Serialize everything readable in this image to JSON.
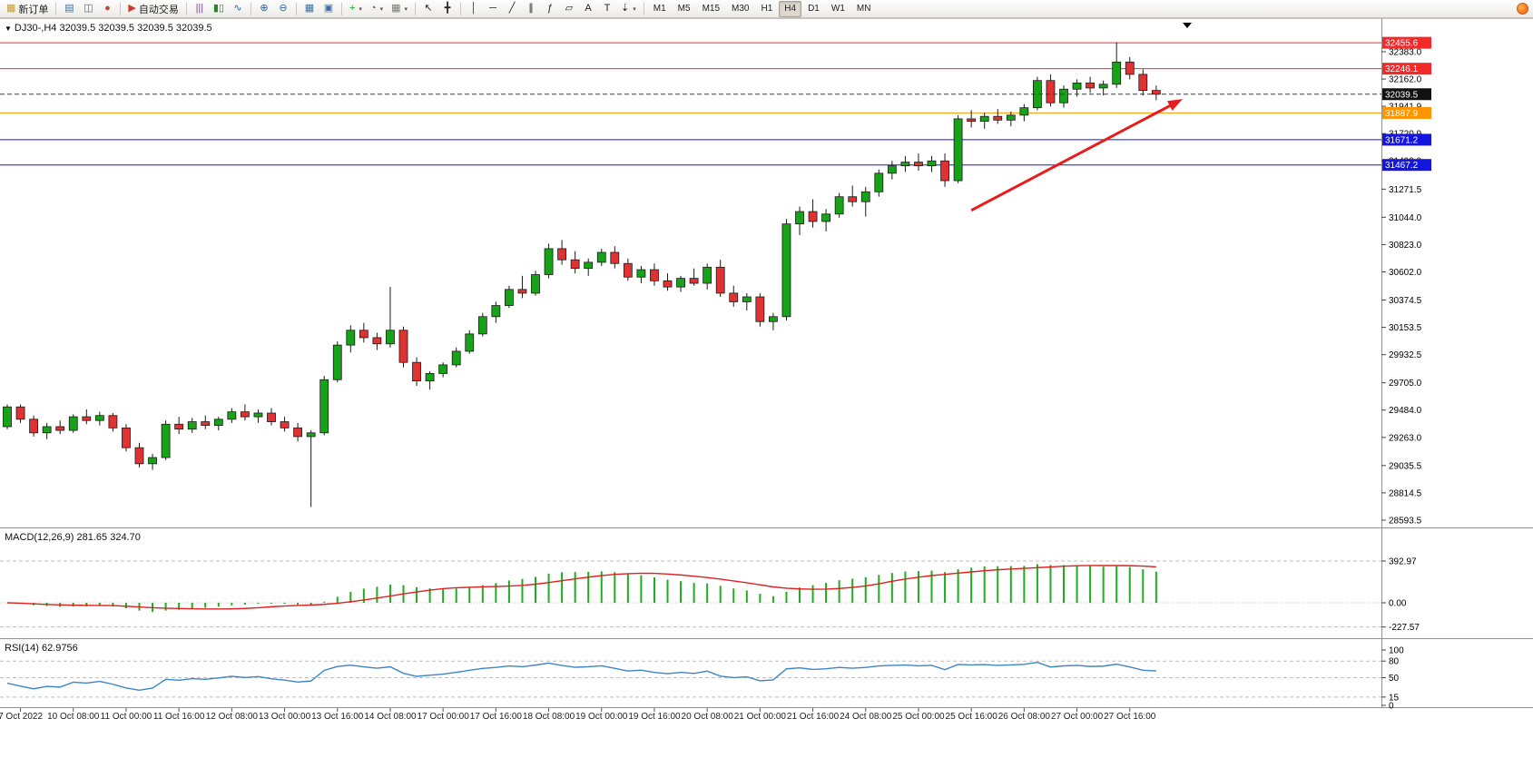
{
  "toolbar": {
    "items": [
      {
        "type": "button",
        "name": "new-order-button",
        "glyph": "▦",
        "glyph_color": "#c99a2c",
        "label": "新订单"
      },
      {
        "type": "sep"
      },
      {
        "type": "button",
        "name": "new-chart-button",
        "glyph": "▤",
        "glyph_color": "#3a6ea5"
      },
      {
        "type": "button",
        "name": "profiles-button",
        "glyph": "◫",
        "glyph_color": "#3a6ea5"
      },
      {
        "type": "button",
        "name": "market-watch-button",
        "glyph": "●",
        "glyph_color": "#b8512e"
      },
      {
        "type": "sep"
      },
      {
        "type": "button",
        "name": "autotrading-button",
        "glyph": "▶",
        "glyph_color": "#cf3a2c",
        "label": "自动交易"
      },
      {
        "type": "sep"
      },
      {
        "type": "button",
        "name": "bar-chart-button",
        "glyph": "|||",
        "glyph_color": "#7a4a9e"
      },
      {
        "type": "button",
        "name": "candlestick-chart-button",
        "glyph": "▮▯",
        "glyph_color": "#2f7d2f"
      },
      {
        "type": "button",
        "name": "line-chart-button",
        "glyph": "∿",
        "glyph_color": "#2b5fa3"
      },
      {
        "type": "sep"
      },
      {
        "type": "button",
        "name": "zoom-in-button",
        "glyph": "⊕",
        "glyph_color": "#2b5fa3"
      },
      {
        "type": "button",
        "name": "zoom-out-button",
        "glyph": "⊖",
        "glyph_color": "#2b5fa3"
      },
      {
        "type": "sep"
      },
      {
        "type": "button",
        "name": "tile-windows-button",
        "glyph": "▦",
        "glyph_color": "#3a6ea5"
      },
      {
        "type": "button",
        "name": "arrange-windows-button",
        "glyph": "▣",
        "glyph_color": "#3a6ea5"
      },
      {
        "type": "sep"
      },
      {
        "type": "button",
        "name": "indicators-button",
        "glyph": "+",
        "glyph_color": "#1f9d1f",
        "caret": true
      },
      {
        "type": "button",
        "name": "periods-button",
        "glyph": "◔",
        "glyph_color": "#555555",
        "caret": true
      },
      {
        "type": "button",
        "name": "templates-button",
        "glyph": "▦",
        "glyph_color": "#777777",
        "caret": true
      },
      {
        "type": "sep"
      },
      {
        "type": "button",
        "name": "cursor-button",
        "glyph": "↖",
        "glyph_color": "#222222"
      },
      {
        "type": "button",
        "name": "crosshair-button",
        "glyph": "╋",
        "glyph_color": "#222222"
      },
      {
        "type": "sep"
      },
      {
        "type": "button",
        "name": "vertical-line-button",
        "glyph": "│",
        "glyph_color": "#222222"
      },
      {
        "type": "button",
        "name": "horizontal-line-button",
        "glyph": "─",
        "glyph_color": "#222222"
      },
      {
        "type": "button",
        "name": "trendline-button",
        "glyph": "╱",
        "glyph_color": "#222222"
      },
      {
        "type": "button",
        "name": "equidistant-channel-button",
        "glyph": "∥",
        "glyph_color": "#222222"
      },
      {
        "type": "button",
        "name": "fibonacci-button",
        "glyph": "ƒ",
        "glyph_color": "#222222"
      },
      {
        "type": "button",
        "name": "shapes-button",
        "glyph": "▱",
        "glyph_color": "#222222"
      },
      {
        "type": "button",
        "name": "text-button",
        "glyph": "A",
        "glyph_color": "#222222"
      },
      {
        "type": "button",
        "name": "text-label-button",
        "glyph": "T",
        "glyph_color": "#222222"
      },
      {
        "type": "button",
        "name": "arrows-button",
        "glyph": "⇣",
        "glyph_color": "#222222",
        "caret": true
      },
      {
        "type": "sep"
      }
    ],
    "timeframes": [
      "M1",
      "M5",
      "M15",
      "M30",
      "H1",
      "H4",
      "D1",
      "W1",
      "MN"
    ],
    "active_timeframe": "H4"
  },
  "chart_data": {
    "type": "candlestick",
    "symbol_title": "DJ30-,H4",
    "timeframe": "H4",
    "ohlc_readout": "32039.5 32039.5 32039.5 32039.5",
    "bull_color": "#17a317",
    "bear_color": "#e03232",
    "wick_color": "#1a1a1a",
    "outline_color": "#1a1a1a",
    "price_axis": [
      32383.0,
      32162.0,
      31941.9,
      31720.9,
      31499.9,
      31271.5,
      31044.0,
      30823.0,
      30602.0,
      30374.5,
      30153.5,
      29932.5,
      29705.0,
      29484.0,
      29263.0,
      29035.5,
      28814.5,
      28593.5
    ],
    "hlines": [
      {
        "name": "resistance-line-upper",
        "price": 32455.6,
        "label": "32455.6",
        "color": "#f42a2a"
      },
      {
        "name": "resistance-line-lower",
        "price": 32246.1,
        "label": "32246.1",
        "color": "#f42a2a"
      },
      {
        "name": "bid-price-line",
        "price": 32039.5,
        "label": "32039.5",
        "color": "#3c3c3c",
        "box": "#111111",
        "dash": true
      },
      {
        "name": "support-line-orange",
        "price": 31887.9,
        "label": "31887.9",
        "color": "#ff9400"
      },
      {
        "name": "support-line-blue-upper",
        "price": 31671.2,
        "label": "31671.2",
        "color": "#1515e0"
      },
      {
        "name": "support-line-blue-lower",
        "price": 31467.2,
        "label": "31467.2",
        "color": "#1515e0"
      }
    ],
    "arrow": {
      "from_index": 73,
      "from_price": 31100,
      "to_index": 89,
      "to_price": 32000,
      "color": "#e81c1c",
      "width": 3
    },
    "time_labels": [
      {
        "i": 1,
        "t": "7 Oct 2022"
      },
      {
        "i": 5,
        "t": "10 Oct 08:00"
      },
      {
        "i": 9,
        "t": "11 Oct 00:00"
      },
      {
        "i": 13,
        "t": "11 Oct 16:00"
      },
      {
        "i": 17,
        "t": "12 Oct 08:00"
      },
      {
        "i": 21,
        "t": "13 Oct 00:00"
      },
      {
        "i": 25,
        "t": "13 Oct 16:00"
      },
      {
        "i": 29,
        "t": "14 Oct 08:00"
      },
      {
        "i": 33,
        "t": "17 Oct 00:00"
      },
      {
        "i": 37,
        "t": "17 Oct 16:00"
      },
      {
        "i": 41,
        "t": "18 Oct 08:00"
      },
      {
        "i": 45,
        "t": "19 Oct 00:00"
      },
      {
        "i": 49,
        "t": "19 Oct 16:00"
      },
      {
        "i": 53,
        "t": "20 Oct 08:00"
      },
      {
        "i": 57,
        "t": "21 Oct 00:00"
      },
      {
        "i": 61,
        "t": "21 Oct 16:00"
      },
      {
        "i": 65,
        "t": "24 Oct 08:00"
      },
      {
        "i": 69,
        "t": "25 Oct 00:00"
      },
      {
        "i": 73,
        "t": "25 Oct 16:00"
      },
      {
        "i": 77,
        "t": "26 Oct 08:00"
      },
      {
        "i": 81,
        "t": "27 Oct 00:00"
      },
      {
        "i": 85,
        "t": "27 Oct 16:00"
      }
    ],
    "candles": [
      [
        29350,
        29530,
        29330,
        29510
      ],
      [
        29510,
        29530,
        29380,
        29410
      ],
      [
        29410,
        29440,
        29270,
        29300
      ],
      [
        29300,
        29380,
        29250,
        29350
      ],
      [
        29350,
        29400,
        29290,
        29320
      ],
      [
        29320,
        29450,
        29300,
        29430
      ],
      [
        29430,
        29490,
        29370,
        29400
      ],
      [
        29400,
        29470,
        29360,
        29440
      ],
      [
        29440,
        29460,
        29310,
        29340
      ],
      [
        29340,
        29370,
        29150,
        29180
      ],
      [
        29180,
        29220,
        29020,
        29050
      ],
      [
        29050,
        29130,
        29000,
        29100
      ],
      [
        29100,
        29400,
        29080,
        29370
      ],
      [
        29370,
        29430,
        29290,
        29330
      ],
      [
        29330,
        29420,
        29300,
        29390
      ],
      [
        29390,
        29440,
        29330,
        29360
      ],
      [
        29360,
        29430,
        29320,
        29410
      ],
      [
        29410,
        29500,
        29380,
        29470
      ],
      [
        29470,
        29530,
        29400,
        29430
      ],
      [
        29430,
        29490,
        29380,
        29460
      ],
      [
        29460,
        29500,
        29360,
        29390
      ],
      [
        29390,
        29430,
        29310,
        29340
      ],
      [
        29340,
        29380,
        29230,
        29270
      ],
      [
        29270,
        29320,
        28700,
        29300
      ],
      [
        29300,
        29760,
        29280,
        29730
      ],
      [
        29730,
        30040,
        29710,
        30010
      ],
      [
        30010,
        30170,
        29950,
        30130
      ],
      [
        30130,
        30190,
        30030,
        30070
      ],
      [
        30070,
        30110,
        29970,
        30020
      ],
      [
        30020,
        30480,
        29990,
        30130
      ],
      [
        30130,
        30160,
        29830,
        29870
      ],
      [
        29870,
        29910,
        29680,
        29720
      ],
      [
        29720,
        29800,
        29650,
        29780
      ],
      [
        29780,
        29870,
        29750,
        29850
      ],
      [
        29850,
        29990,
        29830,
        29960
      ],
      [
        29960,
        30130,
        29940,
        30100
      ],
      [
        30100,
        30270,
        30080,
        30240
      ],
      [
        30240,
        30360,
        30190,
        30330
      ],
      [
        30330,
        30490,
        30310,
        30460
      ],
      [
        30460,
        30570,
        30390,
        30430
      ],
      [
        30430,
        30610,
        30410,
        30580
      ],
      [
        30580,
        30830,
        30550,
        30790
      ],
      [
        30790,
        30860,
        30660,
        30700
      ],
      [
        30700,
        30770,
        30590,
        30630
      ],
      [
        30630,
        30710,
        30570,
        30680
      ],
      [
        30680,
        30790,
        30650,
        30760
      ],
      [
        30760,
        30810,
        30630,
        30670
      ],
      [
        30670,
        30710,
        30530,
        30560
      ],
      [
        30560,
        30650,
        30510,
        30620
      ],
      [
        30620,
        30670,
        30490,
        30530
      ],
      [
        30530,
        30590,
        30450,
        30480
      ],
      [
        30480,
        30570,
        30440,
        30550
      ],
      [
        30550,
        30630,
        30490,
        30510
      ],
      [
        30510,
        30670,
        30460,
        30640
      ],
      [
        30640,
        30700,
        30400,
        30430
      ],
      [
        30430,
        30490,
        30320,
        30360
      ],
      [
        30360,
        30430,
        30290,
        30400
      ],
      [
        30400,
        30430,
        30160,
        30200
      ],
      [
        30200,
        30270,
        30130,
        30240
      ],
      [
        30240,
        31030,
        30210,
        30990
      ],
      [
        30990,
        31130,
        30900,
        31090
      ],
      [
        31090,
        31190,
        30960,
        31010
      ],
      [
        31010,
        31110,
        30930,
        31070
      ],
      [
        31070,
        31240,
        31040,
        31210
      ],
      [
        31210,
        31300,
        31130,
        31170
      ],
      [
        31170,
        31290,
        31050,
        31250
      ],
      [
        31250,
        31430,
        31210,
        31400
      ],
      [
        31400,
        31500,
        31350,
        31460
      ],
      [
        31460,
        31540,
        31410,
        31490
      ],
      [
        31490,
        31560,
        31420,
        31460
      ],
      [
        31460,
        31540,
        31410,
        31500
      ],
      [
        31500,
        31560,
        31290,
        31340
      ],
      [
        31340,
        31870,
        31320,
        31840
      ],
      [
        31840,
        31910,
        31770,
        31820
      ],
      [
        31820,
        31890,
        31760,
        31860
      ],
      [
        31860,
        31920,
        31800,
        31830
      ],
      [
        31830,
        31900,
        31780,
        31870
      ],
      [
        31870,
        31960,
        31820,
        31930
      ],
      [
        31930,
        32180,
        31910,
        32150
      ],
      [
        32150,
        32200,
        31940,
        31970
      ],
      [
        31970,
        32110,
        31930,
        32080
      ],
      [
        32080,
        32160,
        32020,
        32130
      ],
      [
        32130,
        32180,
        32050,
        32090
      ],
      [
        32090,
        32150,
        32030,
        32120
      ],
      [
        32120,
        32460,
        32090,
        32300
      ],
      [
        32300,
        32340,
        32160,
        32200
      ],
      [
        32200,
        32240,
        32030,
        32070
      ],
      [
        32070,
        32110,
        31990,
        32039.5
      ]
    ]
  },
  "macd": {
    "label": "MACD(12,26,9)",
    "main_value": "281.65",
    "signal_value": "324.70",
    "fast": 12,
    "slow": 26,
    "signal": 9,
    "axis_values": [
      392.97,
      0,
      -227.57
    ],
    "histogram_color": "#1fad1f",
    "signal_color": "#e02020"
  },
  "rsi": {
    "label": "RSI(14)",
    "value_text": "62.9756",
    "period": 14,
    "axis_values": [
      100,
      80,
      50,
      15,
      0
    ],
    "levels": [
      80,
      50,
      15
    ],
    "line_color": "#3d85c8"
  }
}
